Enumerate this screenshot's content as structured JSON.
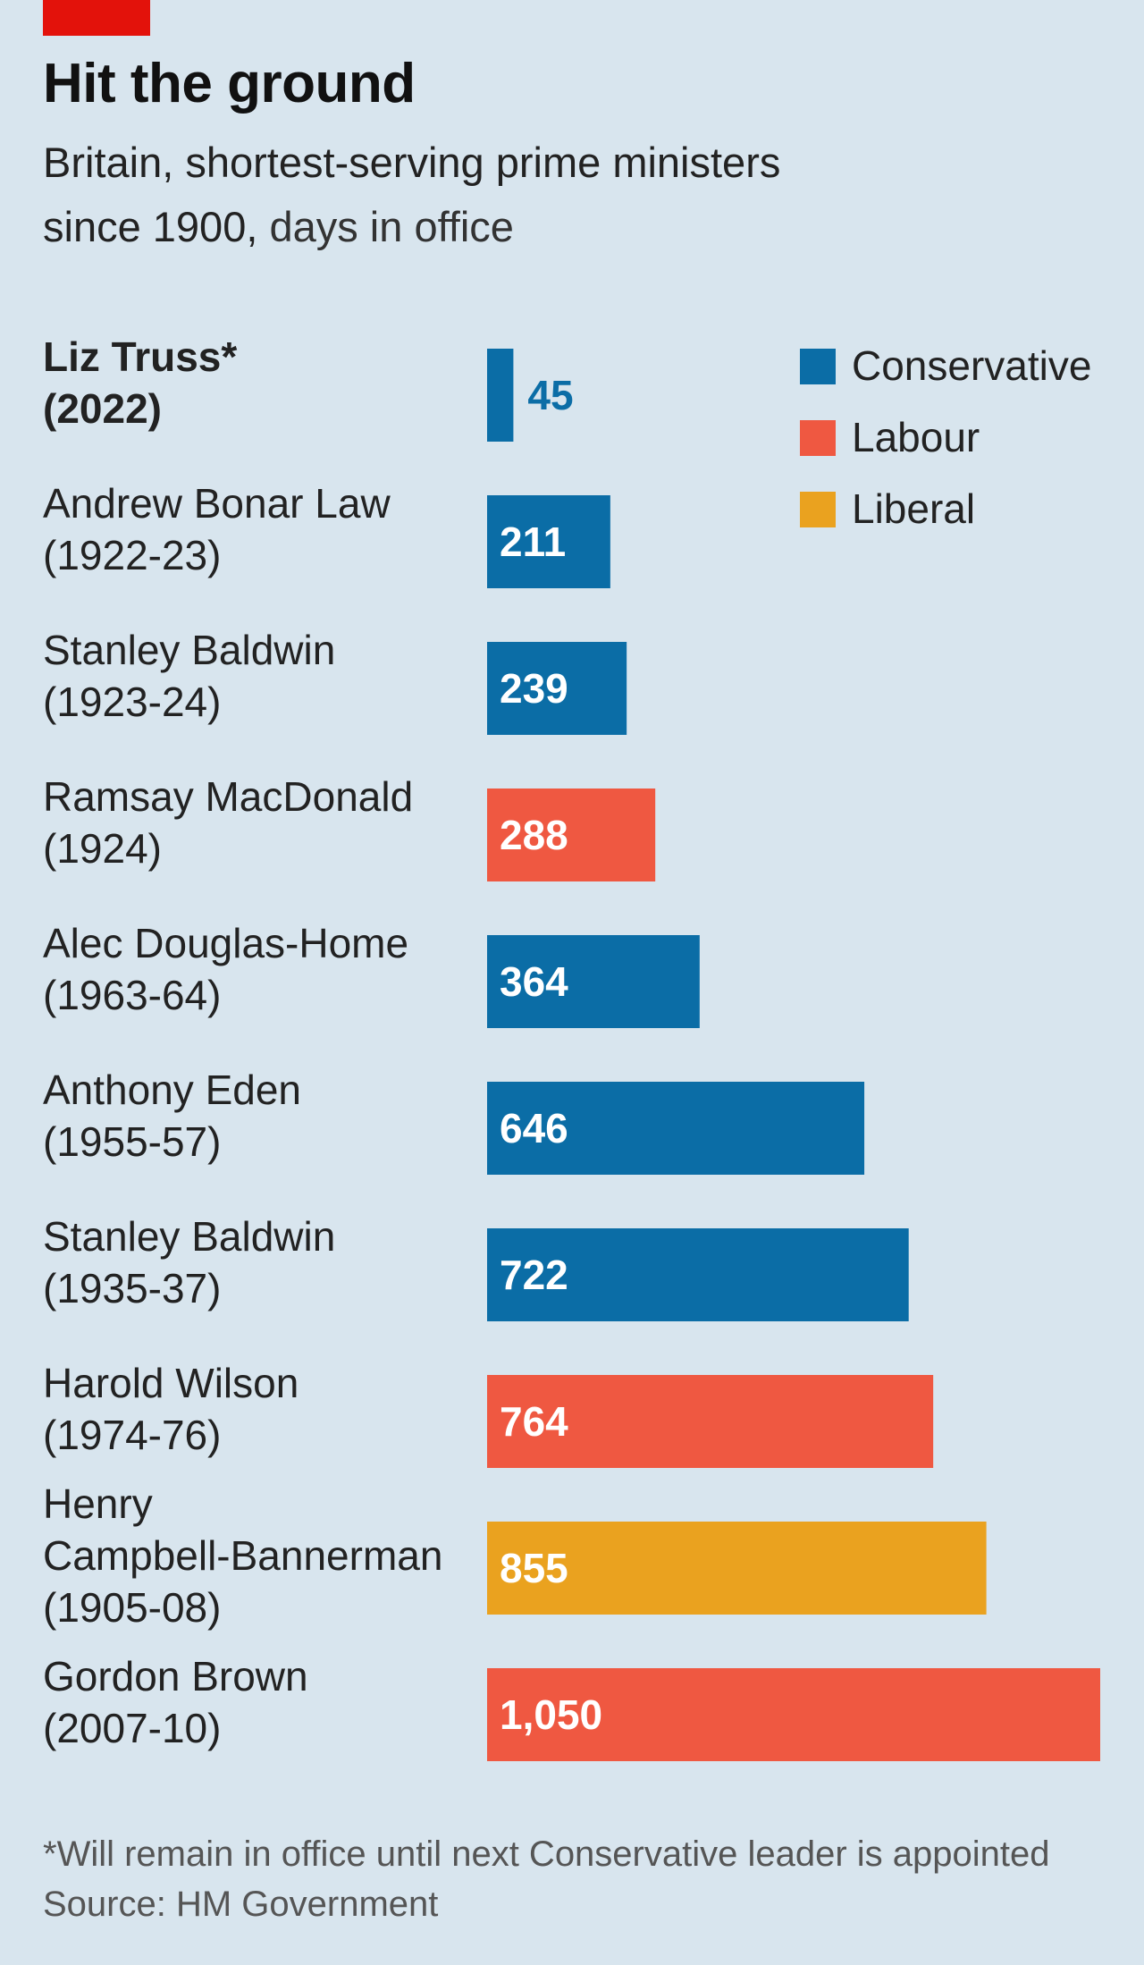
{
  "header": {
    "title": "Hit the ground",
    "subtitle_line1": "Britain, shortest-serving prime ministers",
    "subtitle_line2_bold": "since 1900,",
    "subtitle_line2_unit": " days in office"
  },
  "footer": {
    "note": "*Will remain in office until next Conservative leader is appointed",
    "source": "Source: HM Government"
  },
  "colors": {
    "Conservative": "#0b6da6",
    "Labour": "#ef5841",
    "Liberal": "#eaa21f",
    "background": "#d8e5ee"
  },
  "chart_data": {
    "type": "bar",
    "orientation": "horizontal",
    "title": "Hit the ground",
    "subtitle": "Britain, shortest-serving prime ministers since 1900, days in office",
    "xlim": [
      0,
      1050
    ],
    "grid": false,
    "legend": {
      "placement": "top-right",
      "entries": [
        "Conservative",
        "Labour",
        "Liberal"
      ]
    },
    "categories": [
      {
        "lines": [
          "Liz Truss*",
          "(2022)"
        ],
        "bold": true
      },
      {
        "lines": [
          "Andrew Bonar Law",
          "(1922-23)"
        ]
      },
      {
        "lines": [
          "Stanley Baldwin",
          "(1923-24)"
        ]
      },
      {
        "lines": [
          "Ramsay MacDonald",
          "(1924)"
        ]
      },
      {
        "lines": [
          "Alec Douglas-Home",
          "(1963-64)"
        ]
      },
      {
        "lines": [
          "Anthony Eden",
          "(1955-57)"
        ]
      },
      {
        "lines": [
          "Stanley Baldwin",
          "(1935-37)"
        ]
      },
      {
        "lines": [
          "Harold Wilson",
          "(1974-76)"
        ]
      },
      {
        "lines": [
          "Henry",
          "Campbell-Bannerman",
          "(1905-08)"
        ]
      },
      {
        "lines": [
          "Gordon Brown",
          "(2007-10)"
        ]
      }
    ],
    "values": [
      45,
      211,
      239,
      288,
      364,
      646,
      722,
      764,
      855,
      1050
    ],
    "value_labels": [
      "45",
      "211",
      "239",
      "288",
      "364",
      "646",
      "722",
      "764",
      "855",
      "1,050"
    ],
    "party": [
      "Conservative",
      "Conservative",
      "Conservative",
      "Labour",
      "Conservative",
      "Conservative",
      "Conservative",
      "Labour",
      "Liberal",
      "Labour"
    ]
  }
}
